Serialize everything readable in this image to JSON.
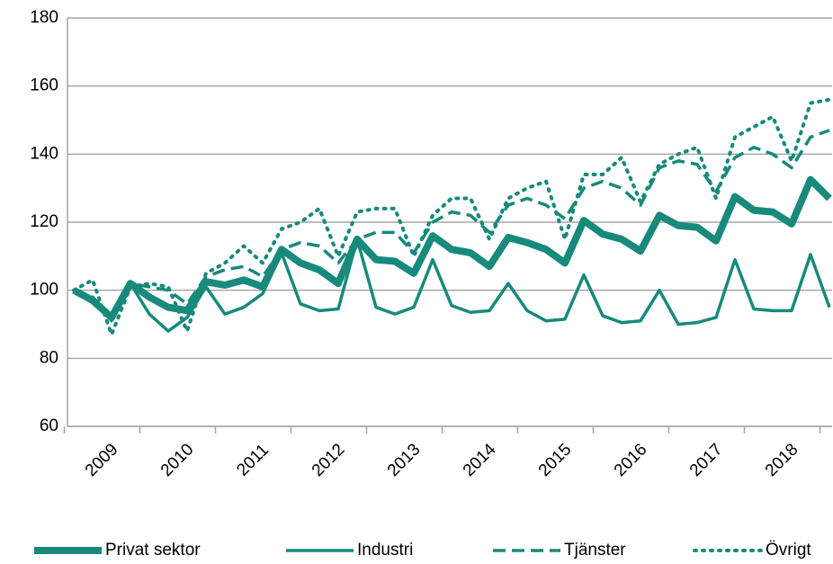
{
  "chart_data": {
    "type": "line",
    "categories": [
      "2009",
      null,
      null,
      null,
      "2010",
      null,
      null,
      null,
      "2011",
      null,
      null,
      null,
      "2012",
      null,
      null,
      null,
      "2013",
      null,
      null,
      null,
      "2014",
      null,
      null,
      null,
      "2015",
      null,
      null,
      null,
      "2016",
      null,
      null,
      null,
      "2017",
      null,
      null,
      null,
      "2018",
      null,
      null,
      null,
      null
    ],
    "series": [
      {
        "name": "Privat sektor",
        "color": "#178a7b",
        "width": 8,
        "dash": "solid",
        "values": [
          100,
          97,
          92,
          102,
          98,
          95,
          94,
          102.5,
          101.5,
          103,
          101,
          112,
          108,
          106,
          102,
          115,
          109,
          108.5,
          105,
          116,
          112,
          111,
          107,
          115.5,
          114,
          112,
          108,
          120.5,
          116.5,
          115,
          111.5,
          122,
          119,
          118.5,
          114.5,
          127.5,
          123.5,
          123,
          119.5,
          132.5,
          127
        ]
      },
      {
        "name": "Industri",
        "color": "#178a7b",
        "width": 3.5,
        "dash": "solid",
        "values": [
          100,
          97,
          91,
          102,
          93,
          88,
          92,
          101,
          93,
          95,
          99,
          111,
          96,
          94,
          94.5,
          115,
          95,
          93,
          95,
          109,
          95.5,
          93.5,
          94,
          102,
          94,
          91,
          91.5,
          104.5,
          92.5,
          90.5,
          91,
          100,
          90,
          90.5,
          92,
          109,
          94.5,
          94,
          94,
          110.5,
          95
        ]
      },
      {
        "name": "Tjänster",
        "color": "#178a7b",
        "width": 3.5,
        "dash": "dashed",
        "values": [
          100,
          98,
          92,
          102,
          101,
          100,
          96,
          104,
          106,
          107,
          104,
          112,
          114,
          113,
          108,
          115,
          117,
          117,
          111,
          120,
          123,
          122,
          117,
          125,
          127,
          125,
          121,
          130,
          132,
          130,
          125,
          136,
          138,
          137,
          129,
          139,
          142,
          140,
          136,
          145,
          147
        ]
      },
      {
        "name": "Övrigt",
        "color": "#178a7b",
        "width": 4,
        "dash": "dotted",
        "values": [
          100,
          103,
          87,
          101,
          102,
          101,
          88,
          105,
          108,
          113,
          108,
          118,
          120,
          124,
          110,
          123,
          124,
          124,
          110,
          122,
          127,
          127,
          115,
          127,
          130,
          132,
          115,
          134,
          134,
          139,
          126,
          137,
          140,
          142,
          127,
          145,
          148,
          151,
          138,
          155,
          156
        ]
      }
    ],
    "ylim": [
      60,
      180
    ],
    "yticks": [
      60,
      80,
      100,
      120,
      140,
      160,
      180
    ],
    "grid": true,
    "legend": "bottom"
  }
}
